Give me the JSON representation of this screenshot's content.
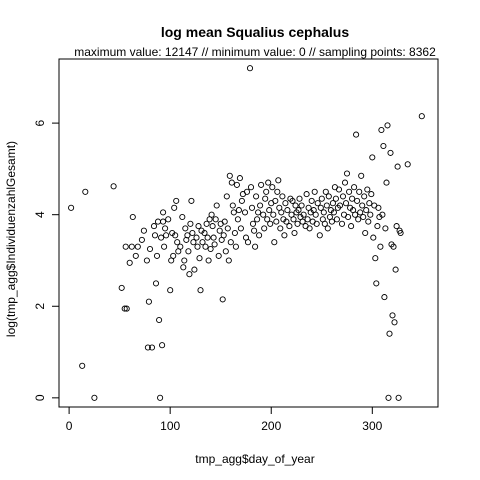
{
  "chart_data": {
    "type": "scatter",
    "title": "log mean Squalius cephalus",
    "subtitle": "maximum value: 12147  //  minimum value: 0  // sampling points: 8362",
    "xlabel": "tmp_agg$day_of_year",
    "ylabel": "log(tmp_agg$IndividuenzahlGesamt)",
    "xlim": [
      -10,
      365
    ],
    "ylim": [
      -0.2,
      7.4
    ],
    "xticks": [
      0,
      100,
      200,
      300
    ],
    "yticks": [
      0,
      2,
      4,
      6
    ],
    "marker": "open-circle",
    "grid": false,
    "legend": "none",
    "points": [
      [
        2,
        4.15
      ],
      [
        13,
        0.7
      ],
      [
        16,
        4.5
      ],
      [
        25,
        0
      ],
      [
        44,
        4.62
      ],
      [
        52,
        2.4
      ],
      [
        55,
        1.95
      ],
      [
        57,
        1.95
      ],
      [
        56,
        3.3
      ],
      [
        60,
        2.95
      ],
      [
        62,
        3.3
      ],
      [
        63,
        3.95
      ],
      [
        66,
        3.1
      ],
      [
        68,
        3.3
      ],
      [
        72,
        3.45
      ],
      [
        74,
        3.65
      ],
      [
        77,
        3.0
      ],
      [
        78,
        1.1
      ],
      [
        79,
        2.1
      ],
      [
        80,
        3.25
      ],
      [
        82,
        1.1
      ],
      [
        84,
        3.75
      ],
      [
        85,
        3.55
      ],
      [
        86,
        2.5
      ],
      [
        87,
        3.1
      ],
      [
        88,
        3.85
      ],
      [
        89,
        1.7
      ],
      [
        90,
        0
      ],
      [
        91,
        3.5
      ],
      [
        92,
        1.15
      ],
      [
        93,
        4.05
      ],
      [
        93,
        3.85
      ],
      [
        94,
        3.3
      ],
      [
        95,
        3.7
      ],
      [
        96,
        3.55
      ],
      [
        98,
        3.9
      ],
      [
        100,
        2.35
      ],
      [
        101,
        3.0
      ],
      [
        102,
        3.6
      ],
      [
        103,
        3.1
      ],
      [
        104,
        4.15
      ],
      [
        105,
        3.55
      ],
      [
        106,
        4.3
      ],
      [
        107,
        3.4
      ],
      [
        108,
        3.2
      ],
      [
        110,
        3.3
      ],
      [
        112,
        3.95
      ],
      [
        113,
        2.85
      ],
      [
        114,
        3.0
      ],
      [
        115,
        3.7
      ],
      [
        116,
        3.45
      ],
      [
        117,
        3.55
      ],
      [
        118,
        3.2
      ],
      [
        119,
        2.7
      ],
      [
        120,
        3.8
      ],
      [
        121,
        4.3
      ],
      [
        122,
        3.6
      ],
      [
        123,
        3.4
      ],
      [
        124,
        2.8
      ],
      [
        126,
        3.5
      ],
      [
        127,
        3.3
      ],
      [
        128,
        3.75
      ],
      [
        129,
        3.05
      ],
      [
        130,
        2.35
      ],
      [
        131,
        3.65
      ],
      [
        132,
        3.4
      ],
      [
        134,
        3.6
      ],
      [
        135,
        3.3
      ],
      [
        136,
        3.8
      ],
      [
        137,
        3.5
      ],
      [
        138,
        3.0
      ],
      [
        139,
        3.9
      ],
      [
        140,
        3.25
      ],
      [
        141,
        4.0
      ],
      [
        142,
        3.75
      ],
      [
        143,
        3.5
      ],
      [
        144,
        3.35
      ],
      [
        145,
        3.9
      ],
      [
        146,
        4.2
      ],
      [
        148,
        3.1
      ],
      [
        149,
        3.65
      ],
      [
        150,
        3.8
      ],
      [
        151,
        3.45
      ],
      [
        152,
        2.15
      ],
      [
        153,
        3.55
      ],
      [
        154,
        3.85
      ],
      [
        155,
        3.2
      ],
      [
        156,
        4.4
      ],
      [
        157,
        3.7
      ],
      [
        158,
        3.0
      ],
      [
        159,
        4.85
      ],
      [
        160,
        3.4
      ],
      [
        161,
        4.7
      ],
      [
        162,
        4.2
      ],
      [
        163,
        4.05
      ],
      [
        164,
        3.6
      ],
      [
        165,
        3.3
      ],
      [
        166,
        4.65
      ],
      [
        167,
        3.9
      ],
      [
        168,
        4.1
      ],
      [
        169,
        4.8
      ],
      [
        170,
        3.7
      ],
      [
        171,
        4.3
      ],
      [
        172,
        4.45
      ],
      [
        174,
        4.05
      ],
      [
        175,
        3.5
      ],
      [
        176,
        4.5
      ],
      [
        177,
        3.4
      ],
      [
        179,
        7.2
      ],
      [
        180,
        4.6
      ],
      [
        181,
        4.15
      ],
      [
        182,
        3.8
      ],
      [
        183,
        3.65
      ],
      [
        184,
        3.3
      ],
      [
        185,
        4.4
      ],
      [
        186,
        3.9
      ],
      [
        187,
        4.05
      ],
      [
        188,
        3.55
      ],
      [
        189,
        4.2
      ],
      [
        190,
        4.65
      ],
      [
        192,
        4.0
      ],
      [
        193,
        3.7
      ],
      [
        194,
        4.35
      ],
      [
        195,
        4.5
      ],
      [
        196,
        3.9
      ],
      [
        197,
        4.7
      ],
      [
        198,
        4.1
      ],
      [
        199,
        3.8
      ],
      [
        200,
        4.25
      ],
      [
        201,
        4.6
      ],
      [
        202,
        4.0
      ],
      [
        203,
        3.4
      ],
      [
        204,
        4.3
      ],
      [
        205,
        3.85
      ],
      [
        206,
        4.5
      ],
      [
        207,
        4.75
      ],
      [
        208,
        4.15
      ],
      [
        209,
        3.7
      ],
      [
        210,
        4.05
      ],
      [
        211,
        4.4
      ],
      [
        212,
        3.9
      ],
      [
        213,
        3.55
      ],
      [
        214,
        4.25
      ],
      [
        215,
        3.85
      ],
      [
        216,
        4.1
      ],
      [
        218,
        3.75
      ],
      [
        219,
        4.35
      ],
      [
        220,
        4.0
      ],
      [
        221,
        4.3
      ],
      [
        222,
        3.9
      ],
      [
        223,
        3.6
      ],
      [
        224,
        4.2
      ],
      [
        225,
        4.05
      ],
      [
        226,
        3.8
      ],
      [
        227,
        4.1
      ],
      [
        228,
        4.35
      ],
      [
        229,
        3.95
      ],
      [
        230,
        4.2
      ],
      [
        231,
        3.85
      ],
      [
        232,
        4.0
      ],
      [
        234,
        3.75
      ],
      [
        235,
        4.45
      ],
      [
        236,
        3.9
      ],
      [
        237,
        4.15
      ],
      [
        238,
        3.7
      ],
      [
        239,
        4.05
      ],
      [
        240,
        4.3
      ],
      [
        241,
        3.85
      ],
      [
        242,
        4.1
      ],
      [
        243,
        4.5
      ],
      [
        244,
        4.0
      ],
      [
        245,
        3.8
      ],
      [
        246,
        4.25
      ],
      [
        248,
        3.55
      ],
      [
        249,
        4.15
      ],
      [
        250,
        4.35
      ],
      [
        251,
        3.9
      ],
      [
        252,
        4.05
      ],
      [
        253,
        3.8
      ],
      [
        254,
        4.5
      ],
      [
        255,
        4.2
      ],
      [
        256,
        3.7
      ],
      [
        257,
        4.4
      ],
      [
        258,
        3.95
      ],
      [
        259,
        4.1
      ],
      [
        260,
        3.85
      ],
      [
        261,
        4.25
      ],
      [
        262,
        4.05
      ],
      [
        263,
        4.6
      ],
      [
        264,
        4.35
      ],
      [
        265,
        3.9
      ],
      [
        266,
        4.15
      ],
      [
        267,
        4.55
      ],
      [
        268,
        4.2
      ],
      [
        270,
        3.8
      ],
      [
        271,
        4.4
      ],
      [
        272,
        4.0
      ],
      [
        273,
        4.7
      ],
      [
        274,
        4.25
      ],
      [
        275,
        4.9
      ],
      [
        276,
        3.95
      ],
      [
        277,
        4.5
      ],
      [
        278,
        4.15
      ],
      [
        279,
        3.75
      ],
      [
        280,
        4.35
      ],
      [
        281,
        4.1
      ],
      [
        282,
        4.6
      ],
      [
        283,
        4.0
      ],
      [
        284,
        5.75
      ],
      [
        285,
        4.3
      ],
      [
        286,
        3.9
      ],
      [
        287,
        4.5
      ],
      [
        288,
        4.05
      ],
      [
        289,
        4.85
      ],
      [
        290,
        4.2
      ],
      [
        291,
        3.95
      ],
      [
        292,
        4.4
      ],
      [
        293,
        3.6
      ],
      [
        294,
        4.1
      ],
      [
        295,
        4.55
      ],
      [
        296,
        3.85
      ],
      [
        297,
        4.25
      ],
      [
        298,
        4.0
      ],
      [
        299,
        4.45
      ],
      [
        300,
        5.25
      ],
      [
        301,
        3.5
      ],
      [
        302,
        4.2
      ],
      [
        303,
        3.05
      ],
      [
        304,
        2.5
      ],
      [
        305,
        3.75
      ],
      [
        306,
        4.15
      ],
      [
        307,
        3.95
      ],
      [
        308,
        3.3
      ],
      [
        309,
        5.85
      ],
      [
        310,
        4.0
      ],
      [
        311,
        5.5
      ],
      [
        312,
        2.2
      ],
      [
        313,
        3.7
      ],
      [
        314,
        4.7
      ],
      [
        315,
        5.95
      ],
      [
        316,
        0
      ],
      [
        317,
        1.4
      ],
      [
        318,
        5.35
      ],
      [
        319,
        3.35
      ],
      [
        320,
        1.8
      ],
      [
        321,
        3.3
      ],
      [
        322,
        1.65
      ],
      [
        323,
        2.8
      ],
      [
        324,
        3.75
      ],
      [
        325,
        5.05
      ],
      [
        326,
        0
      ],
      [
        327,
        3.65
      ],
      [
        328,
        3.6
      ],
      [
        335,
        5.1
      ],
      [
        349,
        6.15
      ]
    ]
  }
}
